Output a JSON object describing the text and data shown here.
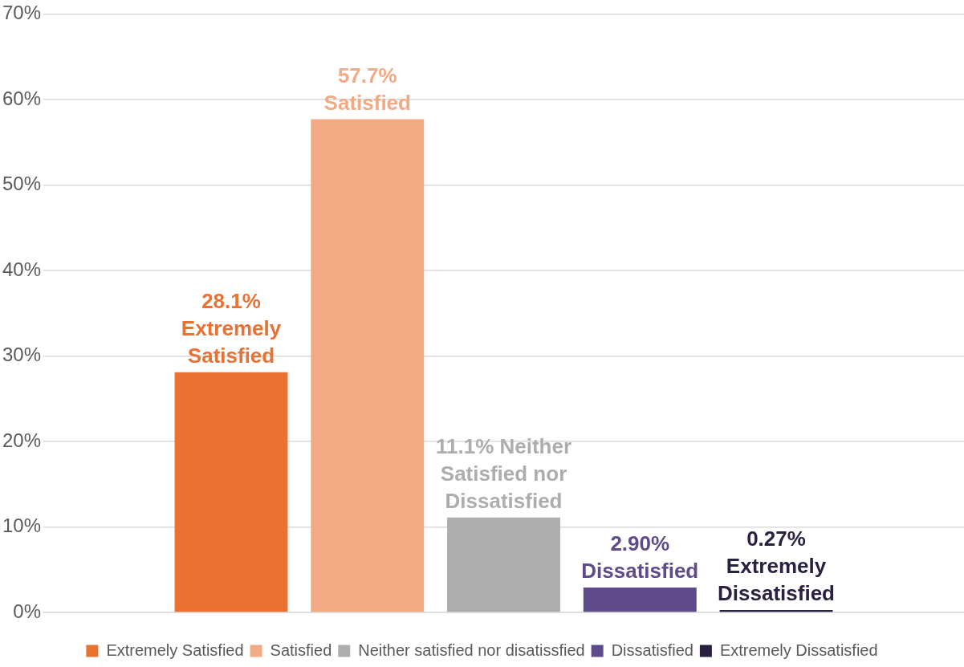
{
  "chart_data": {
    "type": "bar",
    "categories": [
      null
    ],
    "series": [
      {
        "name": "Extremely Satisfied",
        "color": "#e97132",
        "values": [
          28.1
        ],
        "value_labels": [
          "28.1% Extremely Satisfied"
        ]
      },
      {
        "name": "Satisfied",
        "color": "#f2aa84",
        "values": [
          57.7
        ],
        "value_labels": [
          "57.7% Satisfied"
        ]
      },
      {
        "name": "Neither satisfied nor disatissfied",
        "color": "#adadad",
        "values": [
          11.1
        ],
        "value_labels": [
          "11.1% Neither Satisfied nor Dissatisfied"
        ]
      },
      {
        "name": "Dissatisfied",
        "color": "#5f4b8b",
        "values": [
          2.9
        ],
        "value_labels": [
          "2.90% Dissatisfied"
        ]
      },
      {
        "name": "Extremely Dissatisfied",
        "color": "#2a2140",
        "values": [
          0.27
        ],
        "value_labels": [
          "0.27% Extremely Dissatisfied"
        ]
      }
    ],
    "ylim": [
      0,
      70
    ],
    "yticks": [
      {
        "value": 0,
        "label": "0%"
      },
      {
        "value": 10,
        "label": "10%"
      },
      {
        "value": 20,
        "label": "20%"
      },
      {
        "value": 30,
        "label": "30%"
      },
      {
        "value": 40,
        "label": "40%"
      },
      {
        "value": 50,
        "label": "50%"
      },
      {
        "value": 60,
        "label": "60%"
      },
      {
        "value": 70,
        "label": "70%"
      }
    ],
    "grid": "y",
    "legend": "bottom"
  }
}
